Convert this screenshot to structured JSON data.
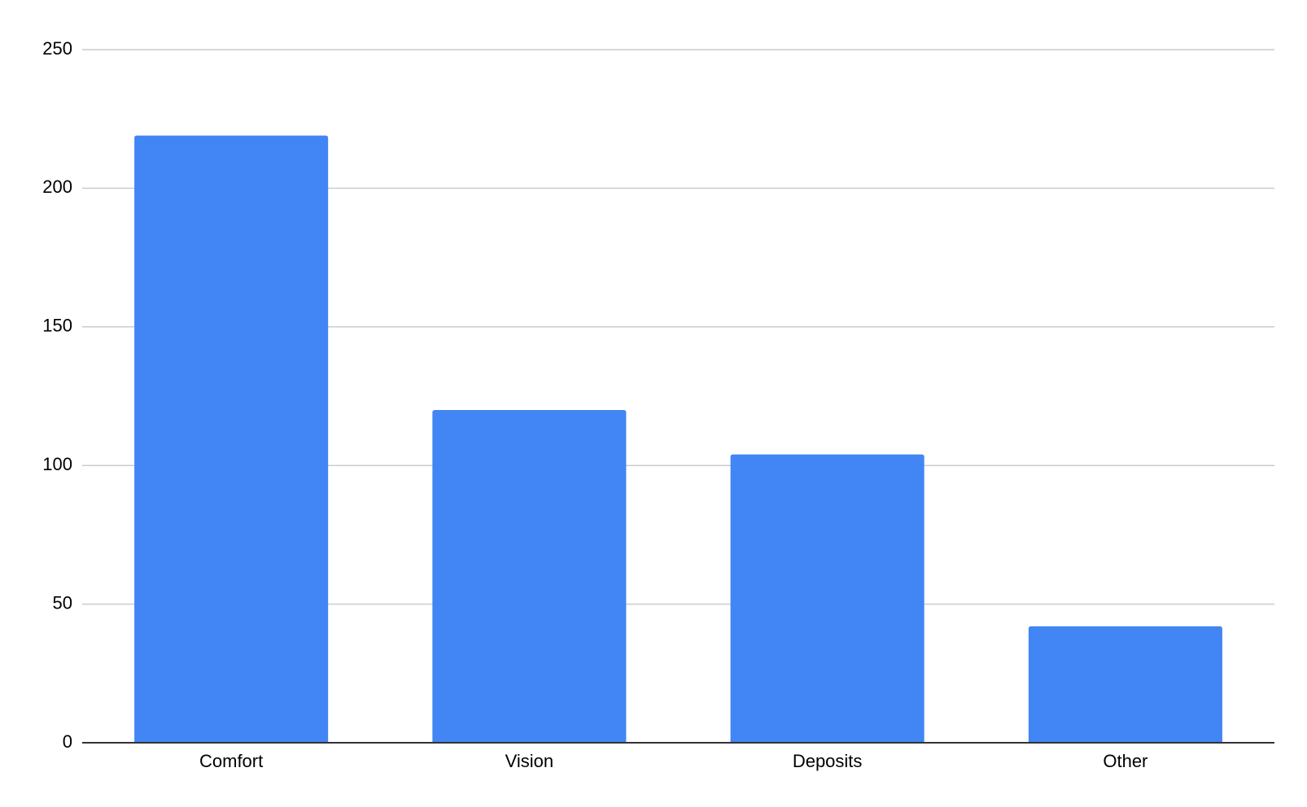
{
  "chart_data": {
    "type": "bar",
    "title": "",
    "xlabel": "",
    "ylabel": "",
    "categories": [
      "Comfort",
      "Vision",
      "Deposits",
      "Other"
    ],
    "values": [
      219,
      120,
      104,
      42
    ],
    "ylim": [
      0,
      250
    ],
    "yticks": [
      "0",
      "50",
      "100",
      "150",
      "200",
      "250"
    ],
    "grid": true,
    "legend": "none",
    "colors": {
      "bar": "#4285F4",
      "gridline": "#cccccc",
      "axis": "#333333",
      "text": "#000000"
    }
  }
}
